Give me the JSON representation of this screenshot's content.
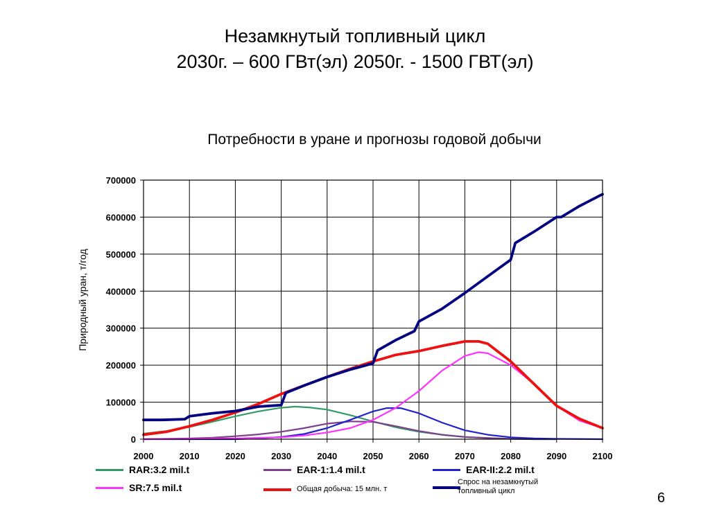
{
  "slide": {
    "title_line1": "Незамкнутый топливный цикл",
    "title_line2": "2030г. – 600 ГВт(эл)   2050г. - 1500 ГВТ(эл)",
    "page_number": "6"
  },
  "chart_data": {
    "type": "line",
    "title": "Потребности в уране и прогнозы годовой добычи",
    "ylabel": "Природный уран, т/год",
    "xlabel": "",
    "xlim": [
      2000,
      2100
    ],
    "ylim": [
      0,
      700000
    ],
    "x_ticks": [
      "2000",
      "2010",
      "2020",
      "2030",
      "2040",
      "2050",
      "2060",
      "2070",
      "2080",
      "2090",
      "2100"
    ],
    "y_ticks": [
      "0",
      "100000",
      "200000",
      "300000",
      "400000",
      "500000",
      "600000",
      "700000"
    ],
    "grid": true,
    "legend_position": "bottom",
    "series": [
      {
        "name": "RAR:3.2 mil.t",
        "color": "#339966",
        "x": [
          2000,
          2005,
          2010,
          2015,
          2020,
          2025,
          2030,
          2033,
          2036,
          2040,
          2045,
          2050,
          2055,
          2060,
          2065,
          2070,
          2075,
          2080,
          2085,
          2090
        ],
        "values": [
          15000,
          22000,
          33000,
          47000,
          62000,
          75000,
          85000,
          88000,
          86000,
          80000,
          65000,
          48000,
          32000,
          20000,
          12000,
          6000,
          3000,
          1000,
          0,
          0
        ]
      },
      {
        "name": "EAR-1:1.4 mil.t",
        "color": "#7B3F8C",
        "x": [
          2000,
          2010,
          2015,
          2020,
          2025,
          2030,
          2035,
          2040,
          2045,
          2050,
          2055,
          2060,
          2065,
          2070,
          2075,
          2080,
          2085,
          2090
        ],
        "values": [
          0,
          2000,
          4000,
          8000,
          13000,
          20000,
          30000,
          42000,
          48000,
          47000,
          35000,
          22000,
          12000,
          6000,
          3000,
          1000,
          0,
          0
        ]
      },
      {
        "name": "EAR-II:2.2 mil.t",
        "color": "#2222CC",
        "x": [
          2000,
          2020,
          2025,
          2030,
          2035,
          2040,
          2045,
          2050,
          2053,
          2056,
          2060,
          2065,
          2070,
          2075,
          2080,
          2085,
          2090,
          2100
        ],
        "values": [
          0,
          0,
          2000,
          6000,
          14000,
          30000,
          52000,
          75000,
          84000,
          84000,
          70000,
          45000,
          24000,
          12000,
          5000,
          2000,
          1000,
          0
        ]
      },
      {
        "name": "SR:7.5 mil.t",
        "color": "#FF33FF",
        "x": [
          2000,
          2020,
          2030,
          2035,
          2040,
          2045,
          2050,
          2055,
          2060,
          2065,
          2070,
          2073,
          2075,
          2080,
          2085,
          2090,
          2095,
          2100
        ],
        "values": [
          0,
          2000,
          5000,
          10000,
          18000,
          30000,
          52000,
          85000,
          130000,
          185000,
          225000,
          235000,
          232000,
          200000,
          150000,
          90000,
          50000,
          30000
        ]
      },
      {
        "name": "Общая добыча: 15 млн. т",
        "color": "#EE1111",
        "x": [
          2000,
          2005,
          2010,
          2015,
          2020,
          2025,
          2030,
          2035,
          2040,
          2045,
          2050,
          2055,
          2060,
          2065,
          2070,
          2073,
          2075,
          2080,
          2085,
          2090,
          2095,
          2100
        ],
        "values": [
          12000,
          20000,
          35000,
          52000,
          72000,
          95000,
          122000,
          145000,
          168000,
          190000,
          210000,
          228000,
          238000,
          252000,
          264000,
          264000,
          258000,
          210000,
          150000,
          90000,
          55000,
          30000
        ]
      },
      {
        "name": "Спрос на незамкнутый топливный цикл",
        "color": "#000080",
        "x": [
          2000,
          2004,
          2009,
          2010,
          2015,
          2020,
          2025,
          2030,
          2031,
          2035,
          2040,
          2045,
          2050,
          2051,
          2055,
          2059,
          2060,
          2065,
          2070,
          2075,
          2080,
          2081,
          2085,
          2090,
          2091,
          2095,
          2100
        ],
        "values": [
          52000,
          52000,
          54000,
          62000,
          70000,
          76000,
          88000,
          92000,
          125000,
          145000,
          168000,
          188000,
          205000,
          240000,
          268000,
          292000,
          318000,
          352000,
          395000,
          440000,
          485000,
          530000,
          560000,
          600000,
          600000,
          630000,
          662000
        ]
      }
    ]
  }
}
